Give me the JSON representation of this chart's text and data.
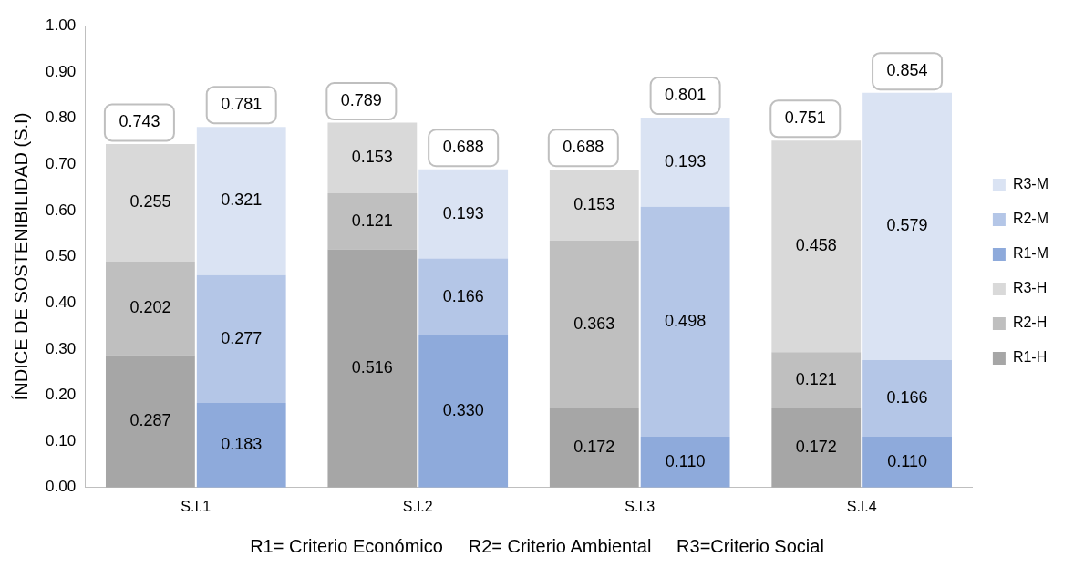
{
  "chart_data": {
    "type": "bar",
    "ylabel": "ÍNDICE DE SOSTENIBILIDAD (S.I)",
    "categories": [
      "S.I.1",
      "S.I.2",
      "S.I.3",
      "S.I.4"
    ],
    "series": [
      {
        "name": "R1-H",
        "color": "#a6a6a6",
        "base": [
          0,
          0,
          0,
          0
        ],
        "values": [
          0.287,
          0.516,
          0.172,
          0.172
        ],
        "value_labels": [
          "0.287",
          "0.516",
          "0.172",
          "0.172"
        ]
      },
      {
        "name": "R2-H",
        "color": "#bfbfbf",
        "base": [
          0.287,
          0.516,
          0.172,
          0.172
        ],
        "values": [
          0.202,
          0.121,
          0.363,
          0.121
        ],
        "value_labels": [
          "0.202",
          "0.121",
          "0.363",
          "0.121"
        ]
      },
      {
        "name": "R3-H",
        "color": "#d9d9d9",
        "base": [
          0.489,
          0.637,
          0.535,
          0.293
        ],
        "values": [
          0.255,
          0.153,
          0.153,
          0.458
        ],
        "value_labels": [
          "0.255",
          "0.153",
          "0.153",
          "0.458"
        ]
      },
      {
        "name": "R1-M",
        "color": "#8eaadb",
        "base": [
          0,
          0,
          0,
          0
        ],
        "values": [
          0.183,
          0.33,
          0.11,
          0.11
        ],
        "value_labels": [
          "0.183",
          "0.330",
          "0.110",
          "0.110"
        ]
      },
      {
        "name": "R2-M",
        "color": "#b4c6e7",
        "base": [
          0.183,
          0.33,
          0.11,
          0.11
        ],
        "values": [
          0.277,
          0.166,
          0.498,
          0.166
        ],
        "value_labels": [
          "0.277",
          "0.166",
          "0.498",
          "0.166"
        ]
      },
      {
        "name": "R3-M",
        "color": "#dae3f3",
        "base": [
          0.46,
          0.496,
          0.608,
          0.276
        ],
        "values": [
          0.321,
          0.193,
          0.193,
          0.579
        ],
        "value_labels": [
          "0.321",
          "0.193",
          "0.193",
          "0.579"
        ]
      }
    ],
    "ylim": [
      0,
      1
    ],
    "yticks": [
      {
        "value": 0,
        "label": "0.00"
      },
      {
        "value": 0.1,
        "label": "0.10"
      },
      {
        "value": 0.2,
        "label": "0.20"
      },
      {
        "value": 0.3,
        "label": "0.30"
      },
      {
        "value": 0.4,
        "label": "0.40"
      },
      {
        "value": 0.5,
        "label": "0.50"
      },
      {
        "value": 0.6,
        "label": "0.60"
      },
      {
        "value": 0.7,
        "label": "0.70"
      },
      {
        "value": 0.8,
        "label": "0.80"
      },
      {
        "value": 0.9,
        "label": "0.90"
      },
      {
        "value": 1,
        "label": "1.00"
      }
    ],
    "grid": false,
    "legend": "right",
    "annotations": [
      {
        "text": "0.743",
        "x": "S.I.1",
        "y": 0.743
      },
      {
        "text": "0.781",
        "x": "S.I.1",
        "y": 0.781
      },
      {
        "text": "0.789",
        "x": "S.I.2",
        "y": 0.789
      },
      {
        "text": "0.688",
        "x": "S.I.2",
        "y": 0.688
      },
      {
        "text": "0.688",
        "x": "S.I.3",
        "y": 0.688
      },
      {
        "text": "0.801",
        "x": "S.I.3",
        "y": 0.801
      },
      {
        "text": "0.751",
        "x": "S.I.4",
        "y": 0.751
      },
      {
        "text": "0.854",
        "x": "S.I.4",
        "y": 0.854
      },
      "R1= Criterio Económico     R2= Criterio Ambiental     R3=Criterio Social"
    ]
  }
}
